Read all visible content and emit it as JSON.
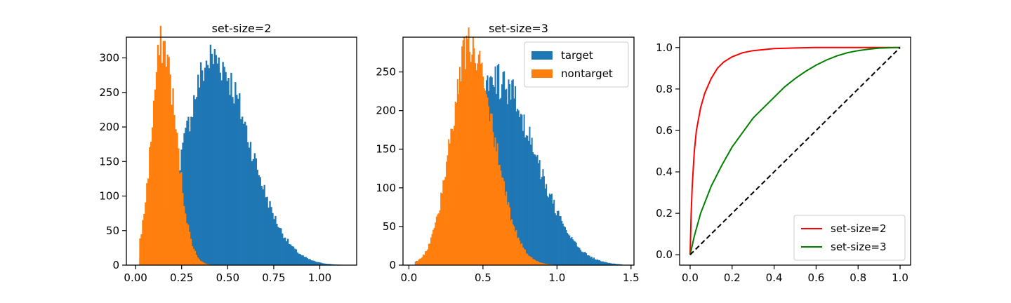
{
  "chart_data": [
    {
      "type": "histogram",
      "title": "set-size=2",
      "xlim": [
        -0.05,
        1.2
      ],
      "ylim": [
        0,
        330
      ],
      "xticks": [
        0.0,
        0.25,
        0.5,
        0.75,
        1.0
      ],
      "xtick_labels": [
        "0.00",
        "0.25",
        "0.50",
        "0.75",
        "1.00"
      ],
      "yticks": [
        0,
        50,
        100,
        150,
        200,
        250,
        300
      ],
      "ytick_labels": [
        "0",
        "50",
        "100",
        "150",
        "200",
        "250",
        "300"
      ],
      "series": [
        {
          "color": "#1f77b4",
          "range": [
            0.02,
            1.13
          ],
          "mean": 0.42,
          "sd": 0.17,
          "peak": 300
        },
        {
          "color": "#ff7f0e",
          "range": [
            0.02,
            0.52
          ],
          "mean": 0.145,
          "sd": 0.065,
          "peak": 320
        }
      ]
    },
    {
      "type": "histogram",
      "title": "set-size=3",
      "xlim": [
        -0.04,
        1.52
      ],
      "ylim": [
        0,
        295
      ],
      "xticks": [
        0.0,
        0.5,
        1.0,
        1.5
      ],
      "xtick_labels": [
        "0.0",
        "0.5",
        "1.0",
        "1.5"
      ],
      "yticks": [
        0,
        50,
        100,
        150,
        200,
        250
      ],
      "ytick_labels": [
        "0",
        "50",
        "100",
        "150",
        "200",
        "250"
      ],
      "legend": {
        "position": "upper right",
        "entries": [
          {
            "label": "target",
            "color": "#1f77b4"
          },
          {
            "label": "nontarget",
            "color": "#ff7f0e"
          }
        ]
      },
      "series": [
        {
          "color": "#1f77b4",
          "range": [
            0.04,
            1.44
          ],
          "mean": 0.6,
          "sd": 0.22,
          "peak": 238
        },
        {
          "color": "#ff7f0e",
          "range": [
            0.04,
            1.05
          ],
          "mean": 0.41,
          "sd": 0.14,
          "peak": 282
        }
      ]
    },
    {
      "type": "line",
      "xlim": [
        -0.05,
        1.05
      ],
      "ylim": [
        -0.05,
        1.05
      ],
      "xticks": [
        0.0,
        0.2,
        0.4,
        0.6,
        0.8,
        1.0
      ],
      "xtick_labels": [
        "0.0",
        "0.2",
        "0.4",
        "0.6",
        "0.8",
        "1.0"
      ],
      "yticks": [
        0.0,
        0.2,
        0.4,
        0.6,
        0.8,
        1.0
      ],
      "ytick_labels": [
        "0.0",
        "0.2",
        "0.4",
        "0.6",
        "0.8",
        "1.0"
      ],
      "legend": {
        "position": "lower right",
        "entries": [
          {
            "label": "set-size=2",
            "color": "#ff0000"
          },
          {
            "label": "set-size=3",
            "color": "#008000"
          }
        ]
      },
      "series": [
        {
          "name": "set-size=2",
          "color": "#ff0000",
          "x": [
            0,
            0.005,
            0.01,
            0.02,
            0.03,
            0.05,
            0.07,
            0.1,
            0.13,
            0.16,
            0.2,
            0.25,
            0.3,
            0.4,
            0.5,
            0.6,
            0.8,
            1.0
          ],
          "y": [
            0,
            0.2,
            0.33,
            0.5,
            0.6,
            0.71,
            0.78,
            0.85,
            0.9,
            0.93,
            0.955,
            0.975,
            0.985,
            0.995,
            0.998,
            1.0,
            1.0,
            1.0
          ]
        },
        {
          "name": "set-size=3",
          "color": "#008000",
          "x": [
            0,
            0.02,
            0.05,
            0.1,
            0.15,
            0.2,
            0.25,
            0.3,
            0.35,
            0.4,
            0.45,
            0.5,
            0.55,
            0.6,
            0.65,
            0.7,
            0.75,
            0.8,
            0.85,
            0.9,
            0.95,
            1.0
          ],
          "y": [
            0,
            0.09,
            0.2,
            0.33,
            0.43,
            0.52,
            0.59,
            0.66,
            0.71,
            0.76,
            0.81,
            0.85,
            0.885,
            0.915,
            0.94,
            0.96,
            0.975,
            0.985,
            0.992,
            0.997,
            0.999,
            1.0
          ]
        },
        {
          "color": "#000000",
          "dash": true,
          "x": [
            0,
            1
          ],
          "y": [
            0,
            1
          ]
        }
      ]
    }
  ]
}
